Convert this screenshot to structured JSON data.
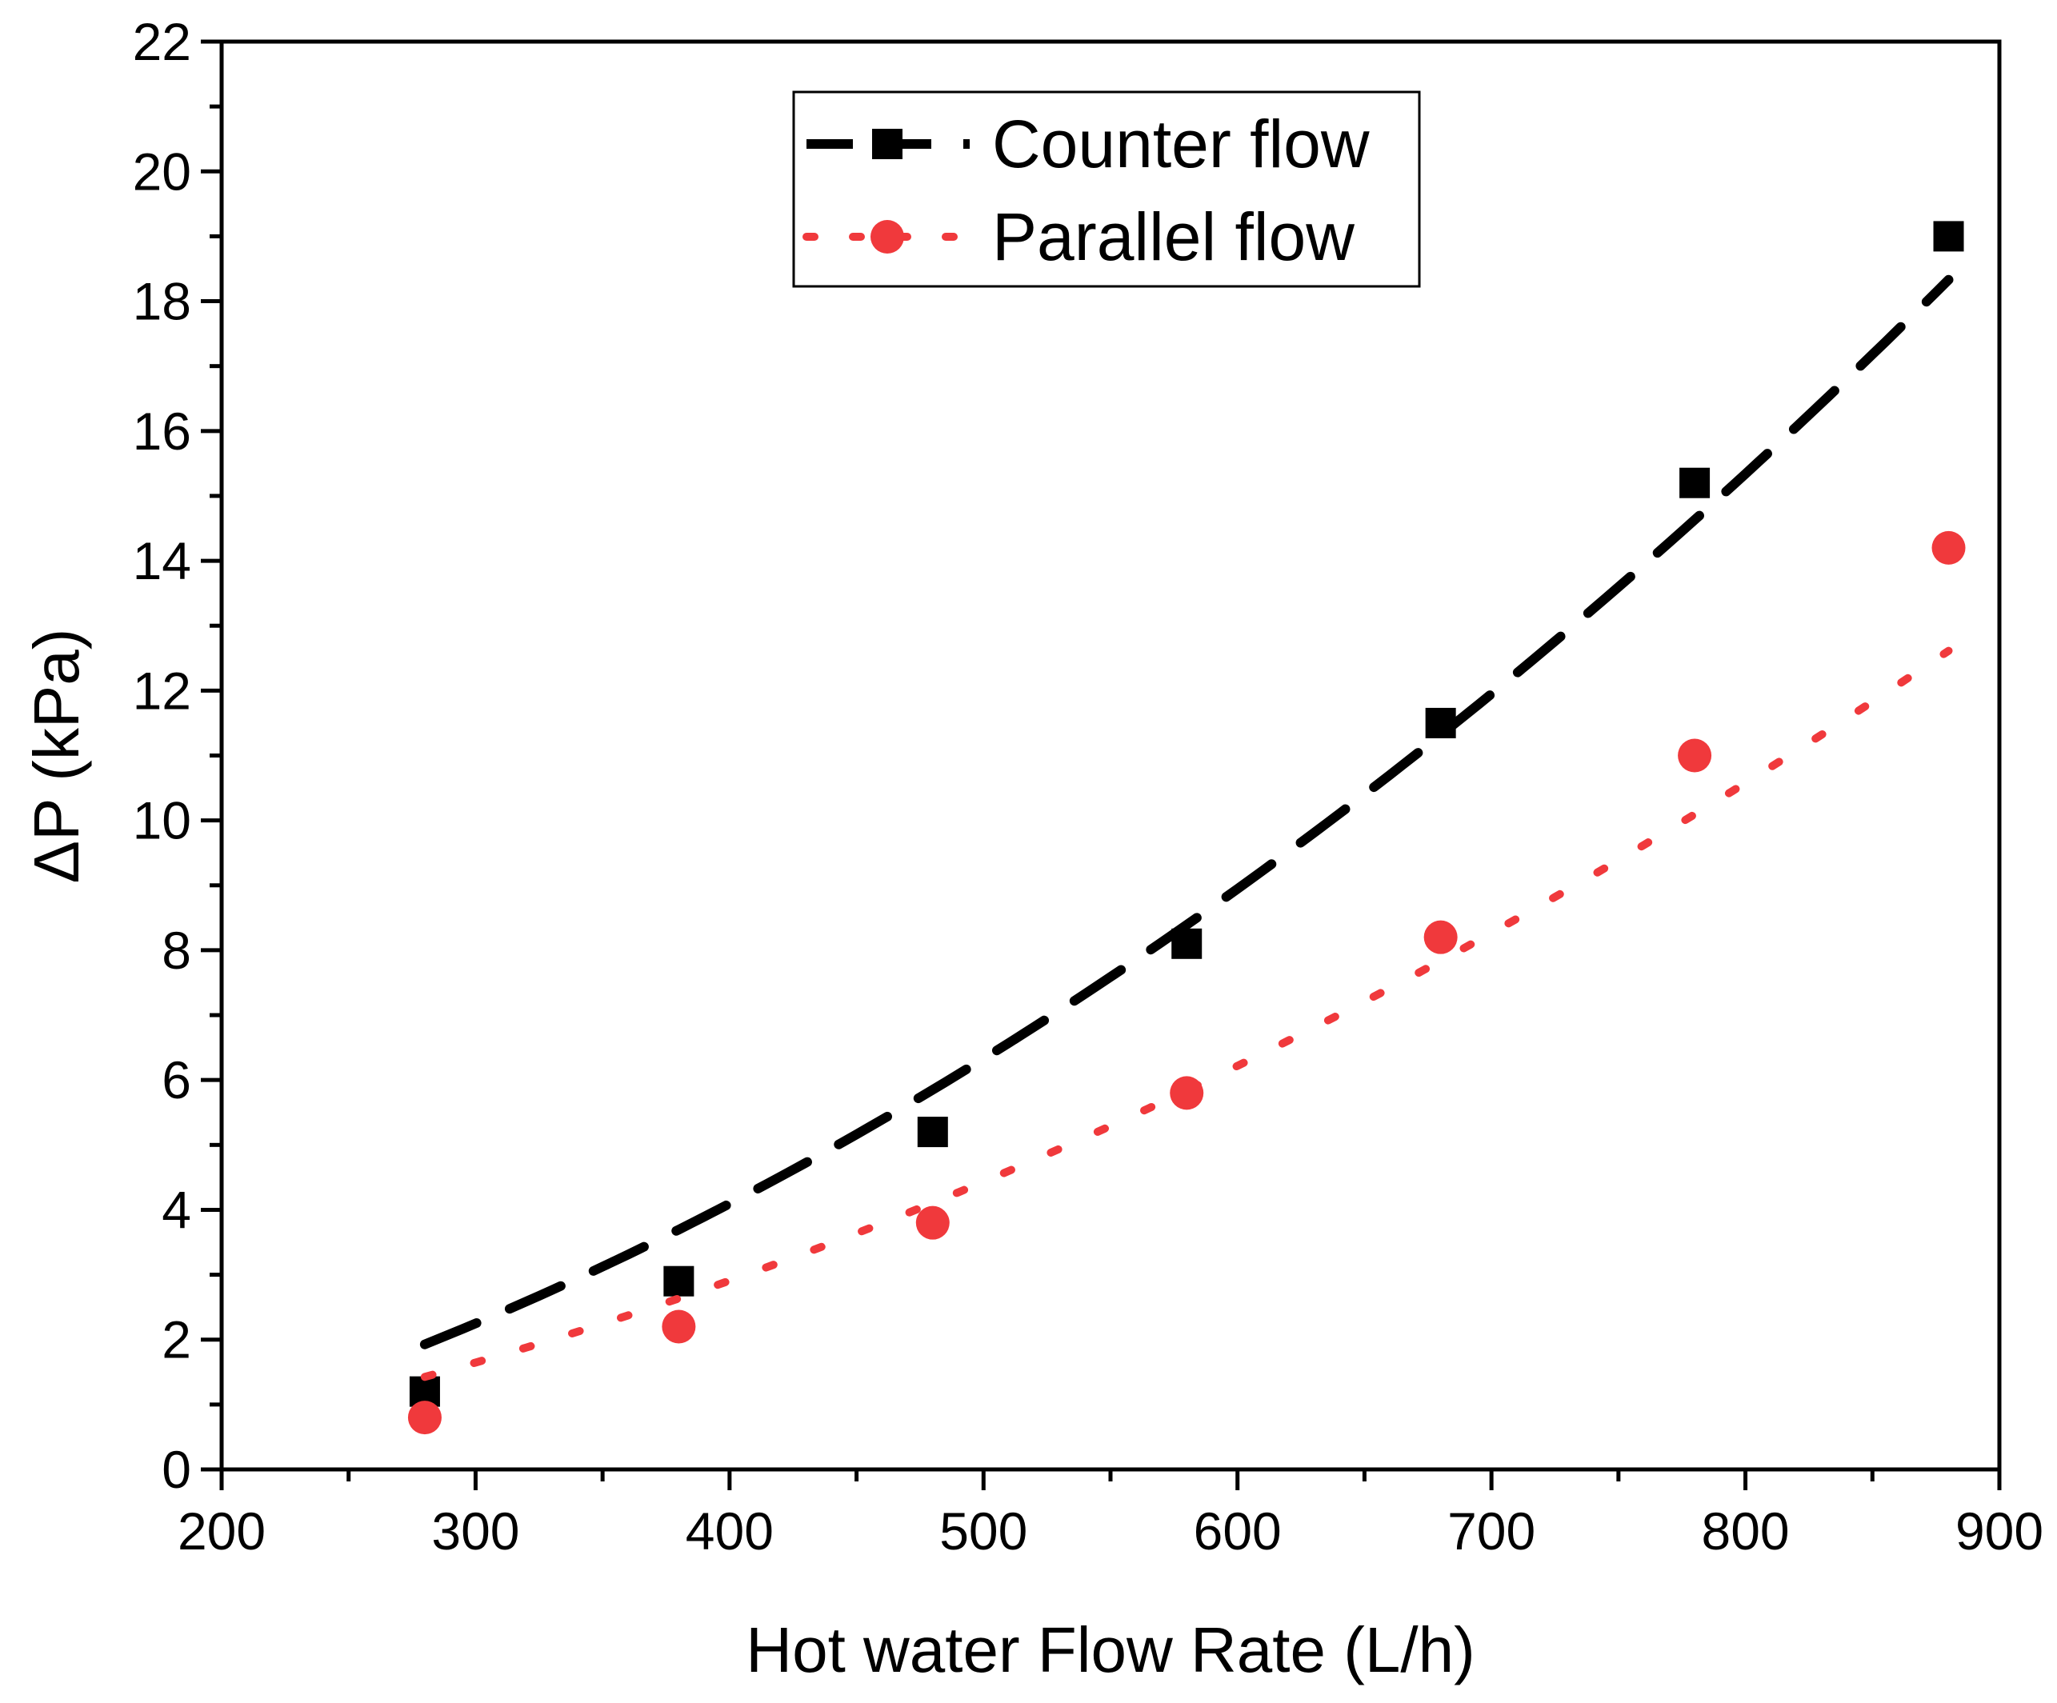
{
  "chart_data": {
    "type": "line",
    "xlabel": "Hot water Flow Rate (L/h)",
    "ylabel": "ΔP (kPa)",
    "xlim": [
      200,
      900
    ],
    "ylim": [
      0,
      22
    ],
    "x_ticks": [
      "200",
      "300",
      "400",
      "500",
      "600",
      "700",
      "800",
      "900"
    ],
    "y_ticks": [
      "0",
      "2",
      "4",
      "6",
      "8",
      "10",
      "12",
      "14",
      "16",
      "18",
      "20",
      "22"
    ],
    "grid": false,
    "legend_position": "top-center",
    "x": [
      280,
      380,
      480,
      580,
      680,
      780,
      880
    ],
    "series": [
      {
        "name": "Counter flow",
        "marker": "square",
        "line_style": "dashed",
        "color": "#000000",
        "values": [
          1.2,
          2.9,
          5.2,
          8.1,
          11.5,
          15.2,
          19.0
        ],
        "fit_quadratic": [
          -0.9725,
          0.00495,
          1.93e-05
        ]
      },
      {
        "name": "Parallel flow",
        "marker": "circle",
        "line_style": "dotted",
        "color": "#f0393c",
        "values": [
          0.8,
          2.2,
          3.8,
          5.8,
          8.2,
          11.0,
          14.2
        ],
        "fit_quadratic": [
          -0.5675,
          0.00345,
          1.31e-05
        ]
      }
    ]
  }
}
